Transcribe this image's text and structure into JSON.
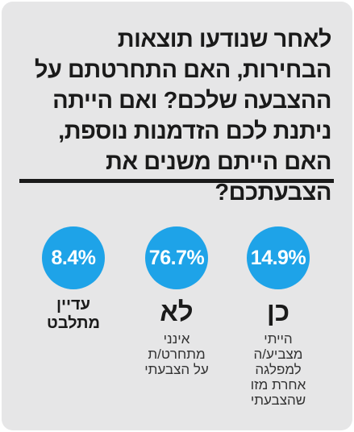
{
  "question": "לאחר שנודעו תוצאות הבחירות, האם התחרטתם על ההצבעה שלכם? ואם הייתה ניתנת לכם הזדמנות נוספת, האם הייתם משנים את הצבעתכם?",
  "chart_data": {
    "type": "table",
    "title": "לאחר שנודעו תוצאות הבחירות, האם התחרטתם על ההצבעה שלכם? ואם הייתה ניתנת לכם הזדמנות נוספת, האם הייתם משנים את הצבעתכם?",
    "categories": [
      "כן",
      "לא",
      "עדיין מתלבט"
    ],
    "values": [
      14.9,
      76.7,
      8.4
    ],
    "items": [
      {
        "value_label": "14.9%",
        "label": "כן",
        "description": "הייתי מצביע/ה למפלגה אחרת מזו שהצבעתי"
      },
      {
        "value_label": "76.7%",
        "label": "לא",
        "description": "אינני מתחרט/ת על הצבעתי"
      },
      {
        "value_label": "8.4%",
        "label": "עדיין מתלבט",
        "description": ""
      }
    ]
  },
  "colors": {
    "accent": "#1ea3e8",
    "background": "#e6e6e7",
    "text": "#1a1a1a"
  }
}
